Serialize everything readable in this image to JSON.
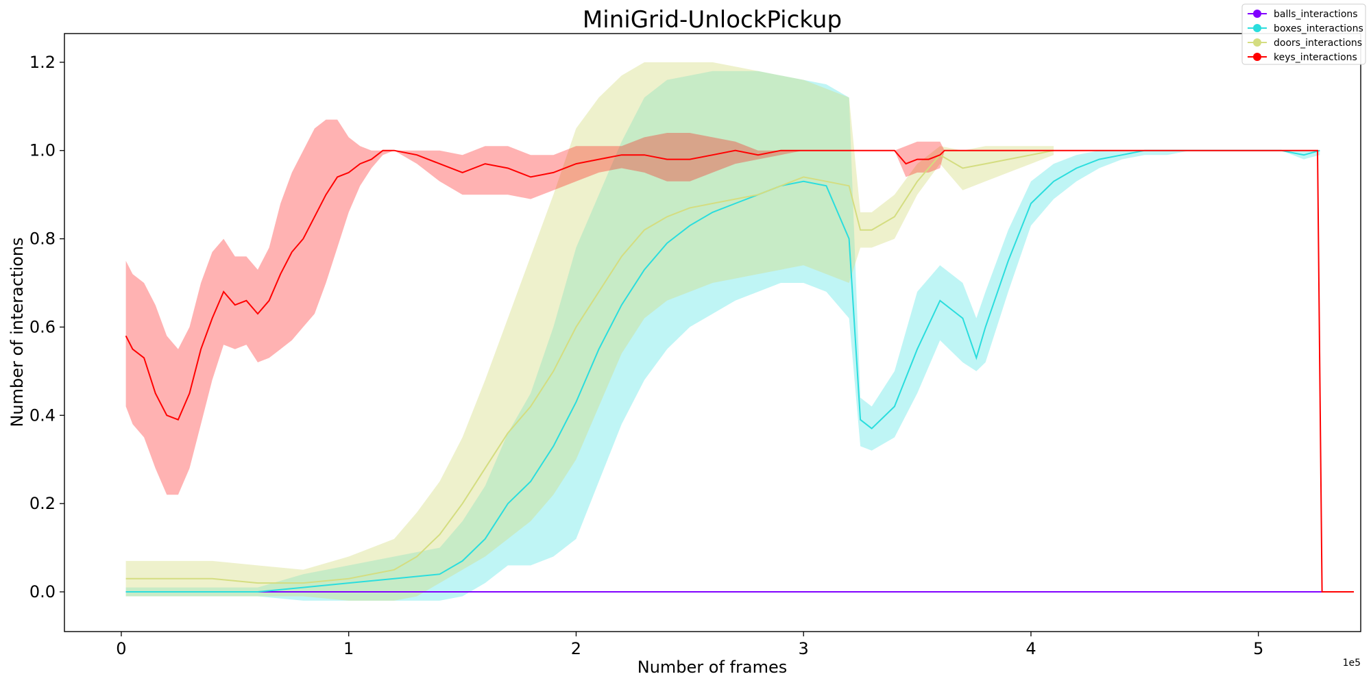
{
  "chart_data": {
    "type": "line",
    "title": "MiniGrid-UnlockPickup",
    "xlabel": "Number of frames",
    "ylabel": "Number of interactions",
    "x_multiplier_label": "1e5",
    "xlim": [
      -0.25,
      5.45
    ],
    "ylim": [
      -0.09,
      1.265
    ],
    "xticks": [
      0,
      1,
      2,
      3,
      4,
      5
    ],
    "xtick_labels": [
      "0",
      "1",
      "2",
      "3",
      "4",
      "5"
    ],
    "yticks": [
      0.0,
      0.2,
      0.4,
      0.6,
      0.8,
      1.0,
      1.2
    ],
    "ytick_labels": [
      "0.0",
      "0.2",
      "0.4",
      "0.6",
      "0.8",
      "1.0",
      "1.2"
    ],
    "grid": false,
    "legend_position": "top-right",
    "series": [
      {
        "name": "balls_interactions",
        "color": "#8000ff",
        "band_opacity": 0.3,
        "x": [
          0.02,
          5.42
        ],
        "mean": [
          0.0,
          0.0
        ],
        "lower": [
          0.0,
          0.0
        ],
        "upper": [
          0.0,
          0.0
        ]
      },
      {
        "name": "boxes_interactions",
        "color": "#2adddd",
        "band_opacity": 0.3,
        "x": [
          0.02,
          0.4,
          0.6,
          0.8,
          1.0,
          1.2,
          1.4,
          1.5,
          1.6,
          1.7,
          1.8,
          1.9,
          2.0,
          2.1,
          2.2,
          2.3,
          2.4,
          2.5,
          2.6,
          2.7,
          2.8,
          2.9,
          3.0,
          3.1,
          3.2,
          3.25,
          3.3,
          3.4,
          3.5,
          3.6,
          3.7,
          3.76,
          3.8,
          3.9,
          4.0,
          4.1,
          4.2,
          4.3,
          4.4,
          4.5,
          4.6,
          4.7,
          4.8,
          4.9,
          5.0,
          5.1,
          5.2,
          5.27
        ],
        "mean": [
          0.0,
          0.0,
          0.0,
          0.01,
          0.02,
          0.03,
          0.04,
          0.07,
          0.12,
          0.2,
          0.25,
          0.33,
          0.43,
          0.55,
          0.65,
          0.73,
          0.79,
          0.83,
          0.86,
          0.88,
          0.9,
          0.92,
          0.93,
          0.92,
          0.8,
          0.39,
          0.37,
          0.42,
          0.55,
          0.66,
          0.62,
          0.53,
          0.6,
          0.75,
          0.88,
          0.93,
          0.96,
          0.98,
          0.99,
          1.0,
          1.0,
          1.0,
          1.0,
          1.0,
          1.0,
          1.0,
          0.99,
          1.0
        ],
        "lower": [
          -0.01,
          -0.01,
          -0.01,
          -0.02,
          -0.02,
          -0.02,
          -0.02,
          -0.01,
          0.02,
          0.06,
          0.06,
          0.08,
          0.12,
          0.25,
          0.38,
          0.48,
          0.55,
          0.6,
          0.63,
          0.66,
          0.68,
          0.7,
          0.7,
          0.68,
          0.62,
          0.33,
          0.32,
          0.35,
          0.45,
          0.57,
          0.52,
          0.5,
          0.52,
          0.68,
          0.83,
          0.89,
          0.93,
          0.96,
          0.98,
          0.99,
          0.99,
          1.0,
          1.0,
          1.0,
          1.0,
          1.0,
          0.98,
          0.99
        ],
        "upper": [
          0.01,
          0.01,
          0.01,
          0.04,
          0.06,
          0.08,
          0.1,
          0.16,
          0.24,
          0.36,
          0.45,
          0.6,
          0.78,
          0.9,
          1.02,
          1.12,
          1.16,
          1.17,
          1.18,
          1.18,
          1.18,
          1.17,
          1.16,
          1.15,
          1.12,
          0.44,
          0.42,
          0.5,
          0.68,
          0.74,
          0.7,
          0.62,
          0.68,
          0.82,
          0.93,
          0.97,
          0.99,
          1.0,
          1.0,
          1.0,
          1.0,
          1.0,
          1.0,
          1.0,
          1.0,
          1.0,
          1.0,
          1.0
        ]
      },
      {
        "name": "doors_interactions",
        "color": "#d4dd80",
        "band_opacity": 0.4,
        "x": [
          0.02,
          0.4,
          0.6,
          0.8,
          1.0,
          1.2,
          1.3,
          1.4,
          1.5,
          1.6,
          1.7,
          1.8,
          1.9,
          2.0,
          2.1,
          2.2,
          2.3,
          2.4,
          2.5,
          2.6,
          2.7,
          2.8,
          2.9,
          3.0,
          3.1,
          3.2,
          3.25,
          3.3,
          3.4,
          3.5,
          3.6,
          3.7,
          3.8,
          3.9,
          4.0,
          4.1
        ],
        "mean": [
          0.03,
          0.03,
          0.02,
          0.02,
          0.03,
          0.05,
          0.08,
          0.13,
          0.2,
          0.28,
          0.36,
          0.42,
          0.5,
          0.6,
          0.68,
          0.76,
          0.82,
          0.85,
          0.87,
          0.88,
          0.89,
          0.9,
          0.92,
          0.94,
          0.93,
          0.92,
          0.82,
          0.82,
          0.85,
          0.93,
          0.99,
          0.96,
          0.97,
          0.98,
          0.99,
          1.0
        ],
        "lower": [
          -0.01,
          -0.01,
          -0.01,
          -0.01,
          -0.02,
          -0.02,
          -0.01,
          0.02,
          0.05,
          0.08,
          0.12,
          0.16,
          0.22,
          0.3,
          0.42,
          0.54,
          0.62,
          0.66,
          0.68,
          0.7,
          0.71,
          0.72,
          0.73,
          0.74,
          0.72,
          0.7,
          0.78,
          0.78,
          0.8,
          0.9,
          0.97,
          0.91,
          0.93,
          0.95,
          0.97,
          0.99
        ],
        "upper": [
          0.07,
          0.07,
          0.06,
          0.05,
          0.08,
          0.12,
          0.18,
          0.25,
          0.35,
          0.48,
          0.62,
          0.76,
          0.9,
          1.05,
          1.12,
          1.17,
          1.2,
          1.2,
          1.2,
          1.2,
          1.19,
          1.18,
          1.17,
          1.16,
          1.14,
          1.12,
          0.86,
          0.86,
          0.9,
          0.97,
          1.01,
          1.0,
          1.01,
          1.01,
          1.01,
          1.01
        ]
      },
      {
        "name": "keys_interactions",
        "color": "#ff0000",
        "band_opacity": 0.3,
        "x": [
          0.02,
          0.05,
          0.1,
          0.15,
          0.2,
          0.25,
          0.3,
          0.35,
          0.4,
          0.45,
          0.5,
          0.55,
          0.6,
          0.65,
          0.7,
          0.75,
          0.8,
          0.85,
          0.9,
          0.95,
          1.0,
          1.05,
          1.1,
          1.15,
          1.2,
          1.3,
          1.4,
          1.5,
          1.6,
          1.7,
          1.8,
          1.9,
          2.0,
          2.1,
          2.2,
          2.3,
          2.4,
          2.5,
          2.6,
          2.7,
          2.8,
          2.9,
          3.0,
          3.2,
          3.4,
          3.45,
          3.5,
          3.55,
          3.6,
          3.62,
          4.0,
          4.5,
          5.0,
          5.26,
          5.28,
          5.42
        ],
        "mean": [
          0.58,
          0.55,
          0.53,
          0.45,
          0.4,
          0.39,
          0.45,
          0.55,
          0.62,
          0.68,
          0.65,
          0.66,
          0.63,
          0.66,
          0.72,
          0.77,
          0.8,
          0.85,
          0.9,
          0.94,
          0.95,
          0.97,
          0.98,
          1.0,
          1.0,
          0.99,
          0.97,
          0.95,
          0.97,
          0.96,
          0.94,
          0.95,
          0.97,
          0.98,
          0.99,
          0.99,
          0.98,
          0.98,
          0.99,
          1.0,
          0.99,
          1.0,
          1.0,
          1.0,
          1.0,
          0.97,
          0.98,
          0.98,
          0.99,
          1.0,
          1.0,
          1.0,
          1.0,
          1.0,
          0.0,
          0.0
        ],
        "lower": [
          0.42,
          0.38,
          0.35,
          0.28,
          0.22,
          0.22,
          0.28,
          0.38,
          0.48,
          0.56,
          0.55,
          0.56,
          0.52,
          0.53,
          0.55,
          0.57,
          0.6,
          0.63,
          0.7,
          0.78,
          0.86,
          0.92,
          0.96,
          0.99,
          1.0,
          0.97,
          0.93,
          0.9,
          0.9,
          0.9,
          0.89,
          0.91,
          0.93,
          0.95,
          0.96,
          0.95,
          0.93,
          0.93,
          0.95,
          0.97,
          0.98,
          0.99,
          1.0,
          1.0,
          1.0,
          0.94,
          0.95,
          0.95,
          0.96,
          1.0,
          1.0,
          1.0,
          1.0,
          1.0,
          0.0,
          0.0
        ],
        "upper": [
          0.75,
          0.72,
          0.7,
          0.65,
          0.58,
          0.55,
          0.6,
          0.7,
          0.77,
          0.8,
          0.76,
          0.76,
          0.73,
          0.78,
          0.88,
          0.95,
          1.0,
          1.05,
          1.07,
          1.07,
          1.03,
          1.01,
          1.0,
          1.0,
          1.0,
          1.0,
          1.0,
          0.99,
          1.01,
          1.01,
          0.99,
          0.99,
          1.01,
          1.01,
          1.01,
          1.03,
          1.04,
          1.04,
          1.03,
          1.02,
          1.0,
          1.0,
          1.0,
          1.0,
          1.0,
          1.01,
          1.02,
          1.02,
          1.02,
          1.0,
          1.0,
          1.0,
          1.0,
          1.0,
          0.0,
          0.0
        ]
      }
    ]
  }
}
